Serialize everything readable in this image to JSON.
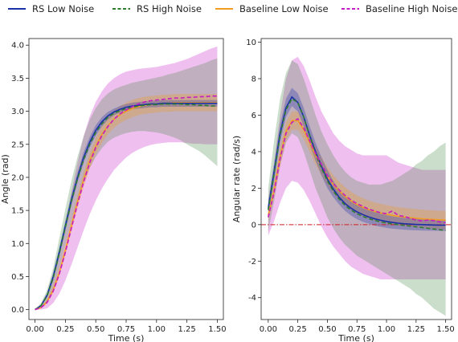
{
  "legend": {
    "placement": "top",
    "entries": [
      {
        "label": "RS Low Noise",
        "color": "#1a2fa8",
        "dash": "solid"
      },
      {
        "label": "RS High Noise",
        "color": "#2e7d2e",
        "dash": "dashed"
      },
      {
        "label": "Baseline Low Noise",
        "color": "#f39c1f",
        "dash": "solid"
      },
      {
        "label": "Baseline High Noise",
        "color": "#c51bc5",
        "dash": "dashed"
      }
    ]
  },
  "chart_data": [
    {
      "type": "line",
      "xlabel": "Time (s)",
      "ylabel": "Angle (rad)",
      "xlim": [
        -0.05,
        1.55
      ],
      "ylim": [
        -0.15,
        4.1
      ],
      "xticks": [
        "0.00",
        "0.25",
        "0.50",
        "0.75",
        "1.00",
        "1.25",
        "1.50"
      ],
      "yticks": [
        "0.0",
        "0.5",
        "1.0",
        "1.5",
        "2.0",
        "2.5",
        "3.0",
        "3.5",
        "4.0"
      ],
      "grid": false,
      "reference_line": null,
      "x": [
        0.0,
        0.05,
        0.1,
        0.15,
        0.2,
        0.25,
        0.3,
        0.35,
        0.4,
        0.45,
        0.5,
        0.55,
        0.6,
        0.65,
        0.7,
        0.75,
        0.8,
        0.85,
        0.9,
        0.95,
        1.0,
        1.05,
        1.1,
        1.15,
        1.2,
        1.25,
        1.3,
        1.35,
        1.4,
        1.45,
        1.5
      ],
      "series": [
        {
          "name": "RS Low Noise",
          "color": "#1a2fa8",
          "dash": "solid",
          "values": [
            0.0,
            0.06,
            0.22,
            0.5,
            0.87,
            1.27,
            1.66,
            2.0,
            2.3,
            2.53,
            2.71,
            2.84,
            2.93,
            2.99,
            3.03,
            3.06,
            3.08,
            3.09,
            3.1,
            3.11,
            3.11,
            3.12,
            3.12,
            3.12,
            3.12,
            3.12,
            3.12,
            3.12,
            3.12,
            3.12,
            3.12
          ],
          "band_lo": [
            0.0,
            0.05,
            0.19,
            0.44,
            0.8,
            1.19,
            1.58,
            1.92,
            2.22,
            2.45,
            2.63,
            2.77,
            2.87,
            2.94,
            2.98,
            3.01,
            3.03,
            3.04,
            3.05,
            3.06,
            3.06,
            3.07,
            3.07,
            3.07,
            3.07,
            3.07,
            3.07,
            3.07,
            3.07,
            3.07,
            3.07
          ],
          "band_hi": [
            0.0,
            0.07,
            0.25,
            0.56,
            0.94,
            1.35,
            1.74,
            2.08,
            2.38,
            2.61,
            2.79,
            2.91,
            2.99,
            3.04,
            3.08,
            3.11,
            3.13,
            3.14,
            3.15,
            3.16,
            3.16,
            3.17,
            3.17,
            3.17,
            3.17,
            3.17,
            3.17,
            3.17,
            3.17,
            3.17,
            3.17
          ]
        },
        {
          "name": "RS High Noise",
          "color": "#2e7d2e",
          "dash": "dashed",
          "values": [
            0.0,
            0.06,
            0.21,
            0.48,
            0.85,
            1.25,
            1.64,
            1.98,
            2.27,
            2.5,
            2.68,
            2.81,
            2.91,
            2.97,
            3.01,
            3.04,
            3.06,
            3.08,
            3.09,
            3.1,
            3.1,
            3.11,
            3.11,
            3.11,
            3.11,
            3.1,
            3.1,
            3.09,
            3.09,
            3.08,
            3.08
          ],
          "band_lo": [
            0.0,
            0.02,
            0.12,
            0.33,
            0.62,
            0.98,
            1.33,
            1.65,
            1.92,
            2.14,
            2.31,
            2.44,
            2.54,
            2.6,
            2.64,
            2.67,
            2.69,
            2.7,
            2.7,
            2.69,
            2.68,
            2.66,
            2.63,
            2.6,
            2.56,
            2.5,
            2.45,
            2.4,
            2.33,
            2.25,
            2.17
          ],
          "band_hi": [
            0.0,
            0.1,
            0.3,
            0.63,
            1.08,
            1.52,
            1.95,
            2.31,
            2.62,
            2.87,
            3.05,
            3.18,
            3.27,
            3.33,
            3.37,
            3.4,
            3.43,
            3.45,
            3.47,
            3.49,
            3.51,
            3.53,
            3.56,
            3.58,
            3.61,
            3.64,
            3.67,
            3.7,
            3.73,
            3.77,
            3.8
          ]
        },
        {
          "name": "Baseline Low Noise",
          "color": "#f39c1f",
          "dash": "solid",
          "values": [
            0.0,
            0.03,
            0.12,
            0.3,
            0.56,
            0.9,
            1.27,
            1.63,
            1.96,
            2.25,
            2.47,
            2.65,
            2.78,
            2.88,
            2.95,
            3.0,
            3.04,
            3.07,
            3.09,
            3.1,
            3.11,
            3.12,
            3.12,
            3.13,
            3.13,
            3.13,
            3.13,
            3.13,
            3.13,
            3.13,
            3.13
          ],
          "band_lo": [
            0.0,
            0.02,
            0.09,
            0.25,
            0.49,
            0.82,
            1.18,
            1.53,
            1.85,
            2.13,
            2.35,
            2.52,
            2.65,
            2.75,
            2.82,
            2.87,
            2.91,
            2.94,
            2.96,
            2.97,
            2.98,
            2.99,
            2.99,
            3.0,
            3.0,
            3.0,
            3.0,
            3.0,
            3.0,
            3.0,
            3.0
          ],
          "band_hi": [
            0.0,
            0.04,
            0.15,
            0.35,
            0.63,
            0.98,
            1.36,
            1.73,
            2.07,
            2.37,
            2.59,
            2.78,
            2.91,
            3.01,
            3.08,
            3.13,
            3.17,
            3.2,
            3.22,
            3.23,
            3.24,
            3.25,
            3.25,
            3.26,
            3.26,
            3.26,
            3.26,
            3.26,
            3.26,
            3.26,
            3.26
          ]
        },
        {
          "name": "Baseline High Noise",
          "color": "#c51bc5",
          "dash": "dashed",
          "values": [
            0.0,
            0.03,
            0.11,
            0.28,
            0.54,
            0.87,
            1.24,
            1.6,
            1.93,
            2.22,
            2.45,
            2.63,
            2.77,
            2.88,
            2.96,
            3.02,
            3.07,
            3.11,
            3.14,
            3.16,
            3.17,
            3.18,
            3.19,
            3.2,
            3.2,
            3.21,
            3.21,
            3.22,
            3.22,
            3.23,
            3.23
          ],
          "band_lo": [
            0.0,
            0.0,
            0.02,
            0.1,
            0.24,
            0.44,
            0.68,
            0.94,
            1.2,
            1.44,
            1.65,
            1.83,
            1.98,
            2.11,
            2.21,
            2.3,
            2.37,
            2.42,
            2.46,
            2.49,
            2.51,
            2.52,
            2.53,
            2.53,
            2.53,
            2.52,
            2.51,
            2.51,
            2.5,
            2.5,
            2.5
          ],
          "band_hi": [
            0.0,
            0.08,
            0.25,
            0.52,
            0.87,
            1.3,
            1.78,
            2.23,
            2.62,
            2.92,
            3.14,
            3.3,
            3.42,
            3.5,
            3.56,
            3.6,
            3.62,
            3.64,
            3.65,
            3.66,
            3.67,
            3.69,
            3.71,
            3.73,
            3.76,
            3.79,
            3.83,
            3.87,
            3.91,
            3.95,
            3.98
          ]
        }
      ]
    },
    {
      "type": "line",
      "xlabel": "Time (s)",
      "ylabel": "Angular rate (rad/s)",
      "xlim": [
        -0.06,
        1.55
      ],
      "ylim": [
        -5.2,
        10.2
      ],
      "xticks": [
        "0.00",
        "0.25",
        "0.50",
        "0.75",
        "1.00",
        "1.25",
        "1.50"
      ],
      "yticks": [
        "-4",
        "-2",
        "0",
        "2",
        "4",
        "6",
        "8",
        "10"
      ],
      "grid": false,
      "reference_line": {
        "y": 0,
        "color": "#d11f1f",
        "dash": "dashdot"
      },
      "x": [
        0.0,
        0.05,
        0.1,
        0.15,
        0.2,
        0.25,
        0.3,
        0.35,
        0.4,
        0.45,
        0.5,
        0.55,
        0.6,
        0.65,
        0.7,
        0.75,
        0.8,
        0.85,
        0.9,
        0.95,
        1.0,
        1.05,
        1.1,
        1.15,
        1.2,
        1.25,
        1.3,
        1.35,
        1.4,
        1.45,
        1.5
      ],
      "series": [
        {
          "name": "RS Low Noise",
          "color": "#1a2fa8",
          "dash": "solid",
          "values": [
            0.9,
            2.9,
            5.0,
            6.4,
            7.0,
            6.7,
            5.9,
            4.9,
            4.0,
            3.2,
            2.5,
            1.95,
            1.5,
            1.15,
            0.9,
            0.7,
            0.55,
            0.42,
            0.32,
            0.24,
            0.17,
            0.12,
            0.08,
            0.05,
            0.03,
            0.01,
            0.0,
            -0.01,
            -0.02,
            -0.03,
            -0.03
          ],
          "band_lo": [
            0.6,
            2.4,
            4.5,
            5.9,
            6.5,
            6.2,
            5.4,
            4.4,
            3.5,
            2.7,
            2.0,
            1.5,
            1.1,
            0.75,
            0.5,
            0.3,
            0.15,
            0.05,
            -0.05,
            -0.12,
            -0.18,
            -0.22,
            -0.25,
            -0.28,
            -0.3,
            -0.31,
            -0.32,
            -0.33,
            -0.33,
            -0.34,
            -0.34
          ],
          "band_hi": [
            1.2,
            3.4,
            5.5,
            6.9,
            7.5,
            7.2,
            6.4,
            5.4,
            4.5,
            3.7,
            3.0,
            2.4,
            1.9,
            1.55,
            1.3,
            1.1,
            0.95,
            0.8,
            0.7,
            0.6,
            0.52,
            0.46,
            0.41,
            0.38,
            0.36,
            0.33,
            0.32,
            0.31,
            0.29,
            0.28,
            0.28
          ]
        },
        {
          "name": "RS High Noise",
          "color": "#2e7d2e",
          "dash": "dashed",
          "values": [
            0.8,
            2.8,
            4.9,
            6.3,
            6.9,
            6.7,
            5.9,
            4.9,
            3.9,
            3.1,
            2.4,
            1.85,
            1.4,
            1.05,
            0.8,
            0.6,
            0.45,
            0.33,
            0.23,
            0.15,
            0.09,
            0.04,
            0.0,
            -0.04,
            -0.08,
            -0.12,
            -0.16,
            -0.2,
            -0.24,
            -0.28,
            -0.32
          ],
          "band_lo": [
            -0.4,
            1.3,
            3.2,
            4.5,
            5.0,
            4.8,
            4.0,
            3.0,
            2.0,
            1.2,
            0.4,
            -0.2,
            -0.7,
            -1.1,
            -1.4,
            -1.7,
            -1.9,
            -2.1,
            -2.3,
            -2.5,
            -2.7,
            -2.9,
            -3.1,
            -3.3,
            -3.5,
            -3.8,
            -4.0,
            -4.3,
            -4.6,
            -4.8,
            -5.0
          ],
          "band_hi": [
            2.0,
            4.6,
            6.9,
            8.3,
            9.0,
            8.8,
            8.0,
            7.0,
            6.0,
            5.1,
            4.4,
            3.8,
            3.3,
            2.9,
            2.6,
            2.4,
            2.3,
            2.2,
            2.2,
            2.2,
            2.3,
            2.4,
            2.6,
            2.8,
            3.0,
            3.3,
            3.5,
            3.8,
            4.0,
            4.3,
            4.5
          ]
        },
        {
          "name": "Baseline Low Noise",
          "color": "#f39c1f",
          "dash": "solid",
          "values": [
            0.5,
            1.9,
            3.7,
            5.1,
            5.7,
            5.7,
            5.2,
            4.5,
            3.8,
            3.2,
            2.65,
            2.2,
            1.85,
            1.55,
            1.3,
            1.1,
            0.95,
            0.82,
            0.72,
            0.64,
            0.57,
            0.51,
            0.46,
            0.42,
            0.38,
            0.35,
            0.32,
            0.3,
            0.28,
            0.26,
            0.25
          ],
          "band_lo": [
            0.2,
            1.5,
            3.2,
            4.6,
            5.2,
            5.2,
            4.7,
            4.0,
            3.3,
            2.7,
            2.15,
            1.7,
            1.35,
            1.05,
            0.8,
            0.6,
            0.45,
            0.32,
            0.22,
            0.14,
            0.07,
            0.01,
            -0.04,
            -0.08,
            -0.12,
            -0.15,
            -0.18,
            -0.2,
            -0.22,
            -0.24,
            -0.25
          ],
          "band_hi": [
            0.8,
            2.3,
            4.2,
            5.6,
            6.2,
            6.2,
            5.7,
            5.0,
            4.3,
            3.7,
            3.15,
            2.7,
            2.35,
            2.05,
            1.8,
            1.6,
            1.45,
            1.32,
            1.22,
            1.14,
            1.07,
            1.01,
            0.96,
            0.92,
            0.88,
            0.85,
            0.82,
            0.8,
            0.78,
            0.76,
            0.75
          ]
        },
        {
          "name": "Baseline High Noise",
          "color": "#c51bc5",
          "dash": "dashed",
          "values": [
            0.4,
            1.8,
            3.6,
            5.0,
            5.6,
            5.8,
            5.3,
            4.6,
            3.9,
            3.3,
            2.7,
            2.25,
            1.9,
            1.6,
            1.35,
            1.15,
            1.0,
            0.85,
            0.75,
            0.65,
            0.6,
            0.75,
            0.5,
            0.45,
            0.35,
            0.25,
            0.2,
            0.25,
            0.22,
            0.15,
            0.1
          ],
          "band_lo": [
            -0.6,
            0.2,
            1.2,
            2.0,
            2.4,
            2.3,
            1.9,
            1.3,
            0.6,
            -0.1,
            -0.7,
            -1.2,
            -1.6,
            -2.0,
            -2.3,
            -2.5,
            -2.7,
            -2.8,
            -2.9,
            -3.0,
            -3.0,
            -3.0,
            -3.0,
            -3.0,
            -3.0,
            -3.0,
            -3.0,
            -3.0,
            -3.0,
            -3.0,
            -3.0
          ],
          "band_hi": [
            1.4,
            3.4,
            6.0,
            8.0,
            9.0,
            9.2,
            8.7,
            7.9,
            7.0,
            6.2,
            5.6,
            5.0,
            4.6,
            4.3,
            4.1,
            3.9,
            3.8,
            3.8,
            3.8,
            3.8,
            3.8,
            3.6,
            3.4,
            3.3,
            3.2,
            3.1,
            3.0,
            3.0,
            3.0,
            3.0,
            3.0
          ]
        }
      ]
    }
  ]
}
